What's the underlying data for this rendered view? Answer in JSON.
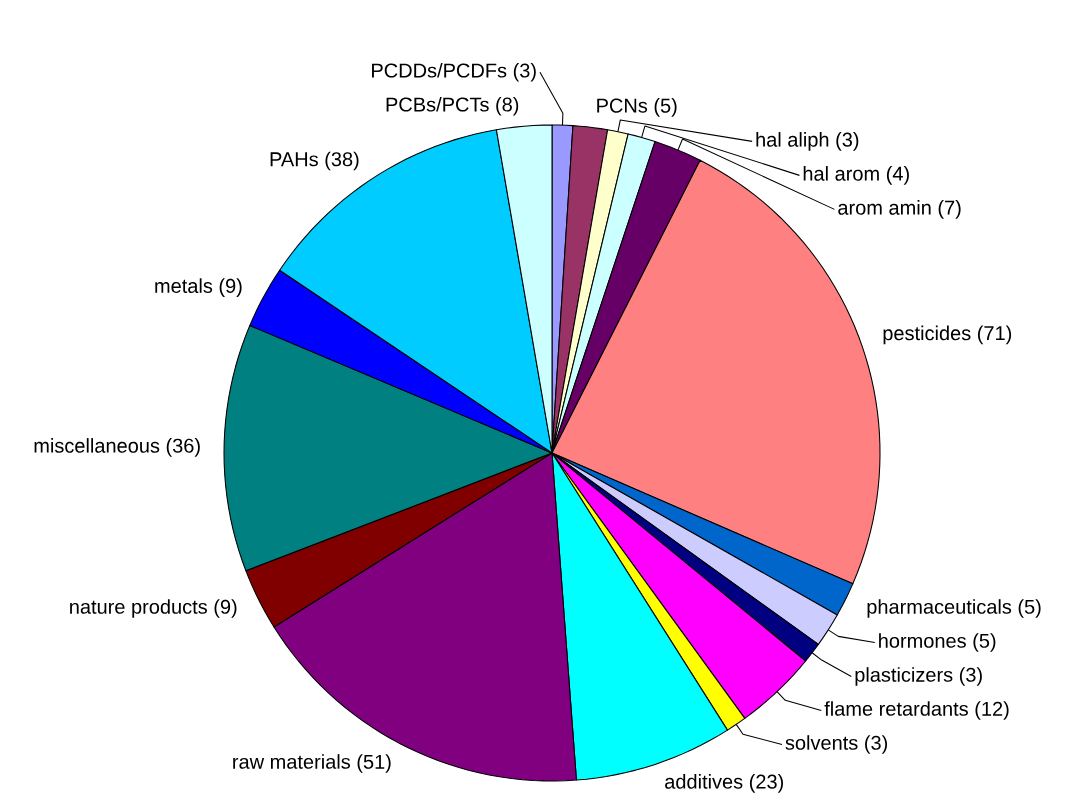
{
  "chart_data": {
    "type": "pie",
    "categories": [
      "PCDDs/PCDFs (3)",
      "PCNs (5)",
      "hal aliph (3)",
      "hal arom (4)",
      "arom amin (7)",
      "pesticides (71)",
      "pharmaceuticals (5)",
      "hormones (5)",
      "plasticizers (3)",
      "flame retardants (12)",
      "solvents (3)",
      "additives (23)",
      "raw materials (51)",
      "nature products (9)",
      "miscellaneous (36)",
      "metals (9)",
      "PAHs (38)",
      "PCBs/PCTs (8)"
    ],
    "values": [
      3,
      5,
      3,
      4,
      7,
      71,
      5,
      5,
      3,
      12,
      3,
      23,
      51,
      9,
      36,
      9,
      38,
      8
    ],
    "colors": [
      "#9999ff",
      "#993366",
      "#ffffcc",
      "#ccffff",
      "#660066",
      "#ff8080",
      "#0066cc",
      "#ccccff",
      "#000080",
      "#ff00ff",
      "#ffff00",
      "#00ffff",
      "#800080",
      "#800000",
      "#008080",
      "#0000ff",
      "#00ccff",
      "#ccffff"
    ]
  }
}
